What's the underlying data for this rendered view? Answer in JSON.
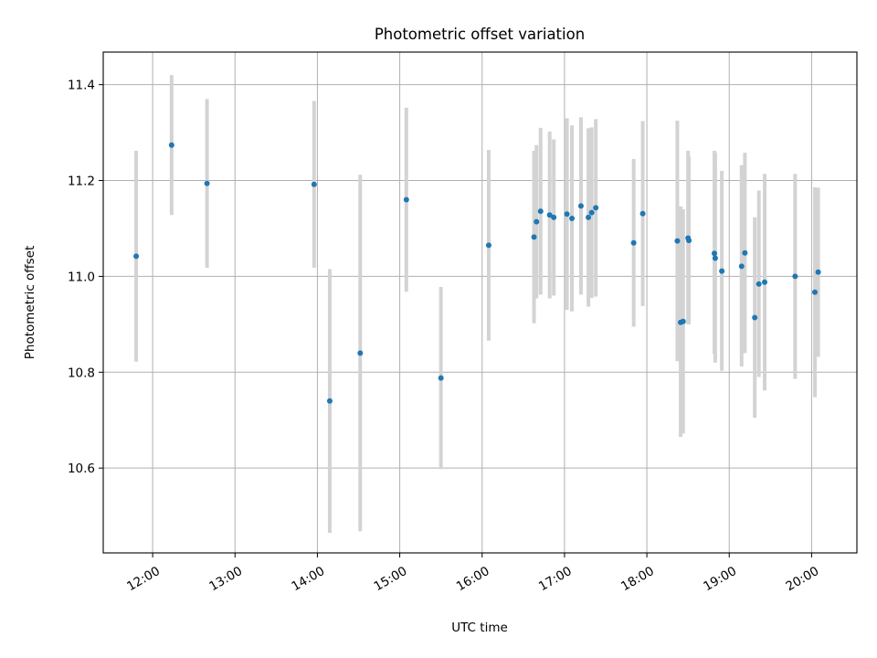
{
  "chart_data": {
    "type": "scatter",
    "title": "Photometric offset variation",
    "xlabel": "UTC time",
    "ylabel": "Photometric offset",
    "x_unit": "hours (UTC)",
    "xlim": [
      11.4,
      20.55
    ],
    "ylim": [
      10.423,
      11.468
    ],
    "grid": true,
    "x_ticks": [
      {
        "value": 12,
        "label": "12:00"
      },
      {
        "value": 13,
        "label": "13:00"
      },
      {
        "value": 14,
        "label": "14:00"
      },
      {
        "value": 15,
        "label": "15:00"
      },
      {
        "value": 16,
        "label": "16:00"
      },
      {
        "value": 17,
        "label": "17:00"
      },
      {
        "value": 18,
        "label": "18:00"
      },
      {
        "value": 19,
        "label": "19:00"
      },
      {
        "value": 20,
        "label": "20:00"
      }
    ],
    "y_ticks": [
      {
        "value": 10.6,
        "label": "10.6"
      },
      {
        "value": 10.8,
        "label": "10.8"
      },
      {
        "value": 11.0,
        "label": "11.0"
      },
      {
        "value": 11.2,
        "label": "11.2"
      },
      {
        "value": 11.4,
        "label": "11.4"
      }
    ],
    "colors": {
      "point": "#1f77b4",
      "errorbar": "#d3d3d3",
      "grid": "#b0b0b0"
    },
    "points": [
      {
        "x": 11.8,
        "y": 11.042,
        "ylow": 10.822,
        "yhigh": 11.262
      },
      {
        "x": 12.23,
        "y": 11.274,
        "ylow": 11.128,
        "yhigh": 11.42
      },
      {
        "x": 12.66,
        "y": 11.194,
        "ylow": 11.018,
        "yhigh": 11.37
      },
      {
        "x": 13.96,
        "y": 11.192,
        "ylow": 11.018,
        "yhigh": 11.366
      },
      {
        "x": 14.15,
        "y": 10.74,
        "ylow": 10.465,
        "yhigh": 11.015
      },
      {
        "x": 14.52,
        "y": 10.84,
        "ylow": 10.468,
        "yhigh": 11.212
      },
      {
        "x": 15.08,
        "y": 11.16,
        "ylow": 10.968,
        "yhigh": 11.352
      },
      {
        "x": 15.5,
        "y": 10.788,
        "ylow": 10.598,
        "yhigh": 10.978
      },
      {
        "x": 16.08,
        "y": 11.065,
        "ylow": 10.866,
        "yhigh": 11.264
      },
      {
        "x": 16.63,
        "y": 11.082,
        "ylow": 10.902,
        "yhigh": 11.262
      },
      {
        "x": 16.66,
        "y": 11.114,
        "ylow": 10.954,
        "yhigh": 11.274
      },
      {
        "x": 16.71,
        "y": 11.136,
        "ylow": 10.962,
        "yhigh": 11.31
      },
      {
        "x": 16.82,
        "y": 11.128,
        "ylow": 10.954,
        "yhigh": 11.302
      },
      {
        "x": 16.87,
        "y": 11.123,
        "ylow": 10.96,
        "yhigh": 11.286
      },
      {
        "x": 17.03,
        "y": 11.13,
        "ylow": 10.93,
        "yhigh": 11.33
      },
      {
        "x": 17.09,
        "y": 11.121,
        "ylow": 10.927,
        "yhigh": 11.315
      },
      {
        "x": 17.2,
        "y": 11.147,
        "ylow": 10.962,
        "yhigh": 11.332
      },
      {
        "x": 17.29,
        "y": 11.123,
        "ylow": 10.937,
        "yhigh": 11.309
      },
      {
        "x": 17.33,
        "y": 11.133,
        "ylow": 10.955,
        "yhigh": 11.311
      },
      {
        "x": 17.38,
        "y": 11.143,
        "ylow": 10.958,
        "yhigh": 11.328
      },
      {
        "x": 17.84,
        "y": 11.07,
        "ylow": 10.895,
        "yhigh": 11.245
      },
      {
        "x": 17.95,
        "y": 11.131,
        "ylow": 10.938,
        "yhigh": 11.324
      },
      {
        "x": 18.37,
        "y": 11.074,
        "ylow": 10.823,
        "yhigh": 11.325
      },
      {
        "x": 18.41,
        "y": 10.904,
        "ylow": 10.665,
        "yhigh": 11.146
      },
      {
        "x": 18.44,
        "y": 10.906,
        "ylow": 10.672,
        "yhigh": 11.14
      },
      {
        "x": 18.5,
        "y": 11.08,
        "ylow": 10.9,
        "yhigh": 11.262
      },
      {
        "x": 18.51,
        "y": 11.075,
        "ylow": 10.9,
        "yhigh": 11.25
      },
      {
        "x": 18.82,
        "y": 11.048,
        "ylow": 10.838,
        "yhigh": 11.262
      },
      {
        "x": 18.83,
        "y": 11.038,
        "ylow": 10.82,
        "yhigh": 11.258
      },
      {
        "x": 18.91,
        "y": 11.011,
        "ylow": 10.803,
        "yhigh": 11.22
      },
      {
        "x": 19.15,
        "y": 11.021,
        "ylow": 10.812,
        "yhigh": 11.232
      },
      {
        "x": 19.19,
        "y": 11.049,
        "ylow": 10.84,
        "yhigh": 11.258
      },
      {
        "x": 19.31,
        "y": 10.914,
        "ylow": 10.705,
        "yhigh": 11.123
      },
      {
        "x": 19.36,
        "y": 10.984,
        "ylow": 10.79,
        "yhigh": 11.179
      },
      {
        "x": 19.43,
        "y": 10.988,
        "ylow": 10.762,
        "yhigh": 11.214
      },
      {
        "x": 19.8,
        "y": 11.0,
        "ylow": 10.786,
        "yhigh": 11.214
      },
      {
        "x": 20.04,
        "y": 10.967,
        "ylow": 10.748,
        "yhigh": 11.186
      },
      {
        "x": 20.08,
        "y": 11.009,
        "ylow": 10.832,
        "yhigh": 11.185
      }
    ]
  }
}
